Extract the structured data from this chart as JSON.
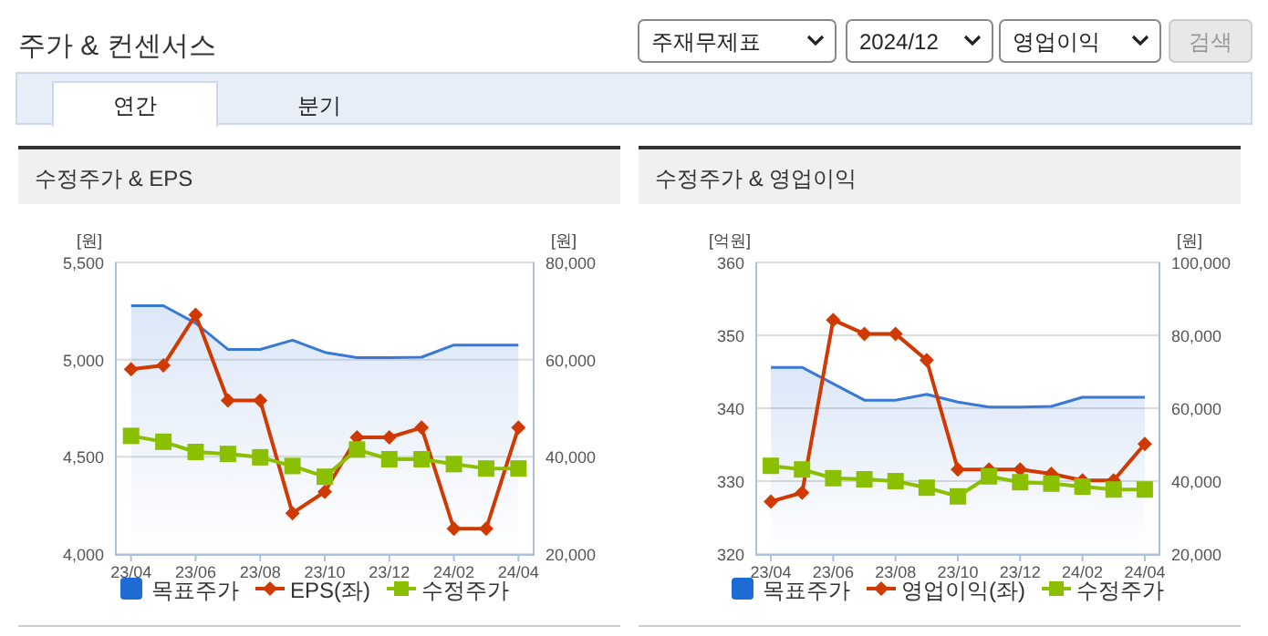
{
  "chart_data": [
    {
      "type": "other",
      "title": "주가 & 컨센서스",
      "annotations": [
        "주재무제표",
        "2024/12",
        "영업이익",
        "검색",
        "연간",
        "분기"
      ]
    },
    {
      "type": "line",
      "title": "수정주가 & EPS",
      "ylabel": "[원]",
      "y2label": "[원]",
      "categories": [
        "23/04",
        null,
        "23/06",
        null,
        "23/08",
        null,
        "23/10",
        null,
        "23/12",
        null,
        "24/02",
        null,
        "24/04"
      ],
      "ylim": [
        4000,
        5500
      ],
      "yticks": [
        {
          "value": 4000,
          "label": "4,000"
        },
        {
          "value": 4500,
          "label": "4,500"
        },
        {
          "value": 5000,
          "label": "5,000"
        },
        {
          "value": 5500,
          "label": "5,500"
        }
      ],
      "y2lim": [
        20000,
        80000
      ],
      "y2ticks": [
        {
          "value": 20000,
          "label": "20,000"
        },
        {
          "value": 40000,
          "label": "40,000"
        },
        {
          "value": 60000,
          "label": "60,000"
        },
        {
          "value": 80000,
          "label": "80,000"
        }
      ],
      "grid": "y",
      "legend": "bottom",
      "series": [
        {
          "name": "목표주가",
          "type": "area",
          "axis": "y2",
          "color": "#3a78d8",
          "marker": "none",
          "values": [
            71100,
            71100,
            67500,
            62100,
            62100,
            64000,
            61500,
            60400,
            60400,
            60500,
            63000,
            63000,
            63000
          ]
        },
        {
          "name": "EPS(좌)",
          "type": "line",
          "axis": "y",
          "color": "#d03a00",
          "marker": "diamond",
          "values": [
            4950,
            4970,
            5230,
            4790,
            4790,
            4210,
            4320,
            4600,
            4600,
            4650,
            4130,
            4130,
            4650
          ]
        },
        {
          "name": "수정주가",
          "type": "line",
          "axis": "y2",
          "color": "#8ac000",
          "marker": "square",
          "values": [
            44300,
            43100,
            41000,
            40600,
            39900,
            38100,
            35900,
            41500,
            39500,
            39500,
            38500,
            37600,
            37600
          ]
        }
      ]
    },
    {
      "type": "line",
      "title": "수정주가 & 영업이익",
      "ylabel": "[억원]",
      "y2label": "[원]",
      "categories": [
        "23/04",
        null,
        "23/06",
        null,
        "23/08",
        null,
        "23/10",
        null,
        "23/12",
        null,
        "24/02",
        null,
        "24/04"
      ],
      "ylim": [
        320,
        360
      ],
      "yticks": [
        320,
        330,
        340,
        350,
        360
      ],
      "y2lim": [
        20000,
        100000
      ],
      "y2ticks": [
        {
          "value": 20000,
          "label": "20,000"
        },
        {
          "value": 40000,
          "label": "40,000"
        },
        {
          "value": 60000,
          "label": "60,000"
        },
        {
          "value": 80000,
          "label": "80,000"
        },
        {
          "value": 100000,
          "label": "100,000"
        }
      ],
      "grid": "y",
      "legend": "bottom",
      "series": [
        {
          "name": "목표주가",
          "type": "area",
          "axis": "y2",
          "color": "#3a78d8",
          "marker": "none",
          "values": [
            71200,
            71200,
            66700,
            62200,
            62200,
            63800,
            61700,
            60300,
            60300,
            60500,
            63000,
            63000,
            63000
          ]
        },
        {
          "name": "영업이익(좌)",
          "type": "line",
          "axis": "y",
          "color": "#d03a00",
          "marker": "diamond",
          "values": [
            327.2,
            328.4,
            352.1,
            350.2,
            350.2,
            346.6,
            331.6,
            331.6,
            331.6,
            331.0,
            330.1,
            330.1,
            335.1
          ]
        },
        {
          "name": "수정주가",
          "type": "line",
          "axis": "y2",
          "color": "#8ac000",
          "marker": "square",
          "values": [
            44200,
            43200,
            40800,
            40500,
            40000,
            38200,
            35800,
            41300,
            39700,
            39300,
            38500,
            37700,
            37700
          ]
        }
      ]
    }
  ]
}
